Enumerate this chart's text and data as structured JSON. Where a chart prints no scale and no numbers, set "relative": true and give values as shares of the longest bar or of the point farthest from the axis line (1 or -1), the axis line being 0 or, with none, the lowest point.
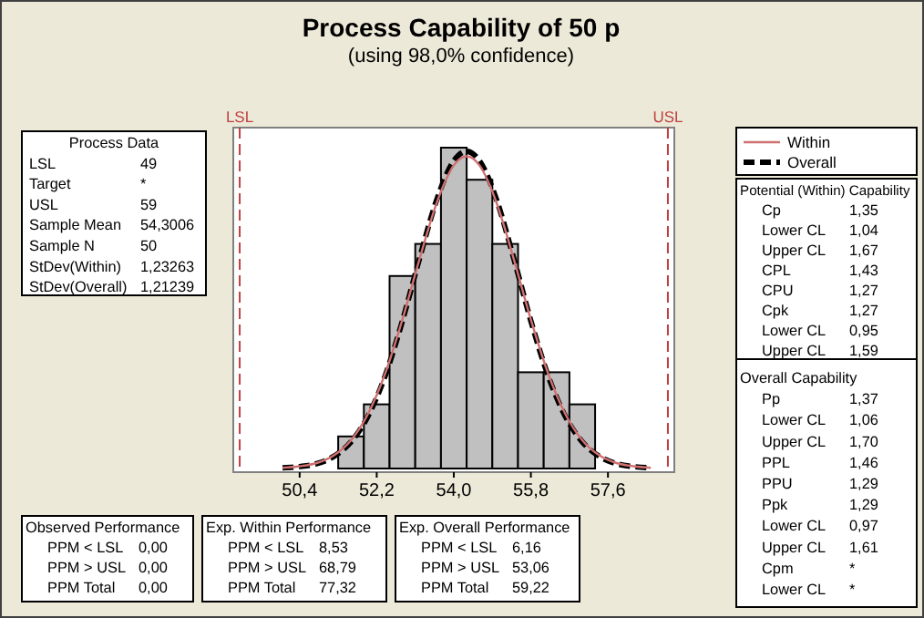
{
  "chart_data": {
    "type": "histogram",
    "title": "Process Capability of 50 p",
    "subtitle": "(using 98,0% confidence)",
    "relative": true,
    "color": "#c0c0c0",
    "bins": [
      51.3,
      51.9,
      52.5,
      53.1,
      53.7,
      54.3,
      54.9,
      55.5,
      56.1,
      56.7,
      57.3
    ],
    "values": [
      0.1,
      0.2,
      0.6,
      0.7,
      1,
      0.9,
      0.7,
      0.3,
      0.3,
      0.2
    ],
    "series": [
      {
        "type": "line",
        "name": "Within",
        "color": "#d07070",
        "line_style": "solid",
        "x": [
          50.0,
          50.4,
          50.8,
          51.2,
          51.6,
          52.0,
          52.4,
          52.8,
          53.2,
          53.6,
          54.0,
          54.3,
          54.6,
          55.0,
          55.4,
          55.8,
          56.2,
          56.6,
          57.0,
          57.4,
          57.8,
          58.2,
          58.6
        ],
        "values": [
          0.002,
          0.007,
          0.017,
          0.041,
          0.088,
          0.171,
          0.297,
          0.464,
          0.653,
          0.828,
          0.945,
          0.973,
          0.945,
          0.828,
          0.653,
          0.464,
          0.297,
          0.171,
          0.088,
          0.041,
          0.017,
          0.007,
          0.002
        ]
      },
      {
        "type": "line",
        "name": "Overall",
        "color": "#000000",
        "line_style": "dashed",
        "x": [
          50.0,
          50.4,
          50.8,
          51.2,
          51.6,
          52.0,
          52.4,
          52.8,
          53.2,
          53.6,
          54.0,
          54.3,
          54.6,
          55.0,
          55.4,
          55.8,
          56.2,
          56.6,
          57.0,
          57.4,
          57.8,
          58.2,
          58.6
        ],
        "values": [
          0.002,
          0.006,
          0.015,
          0.038,
          0.083,
          0.164,
          0.29,
          0.46,
          0.655,
          0.837,
          0.959,
          0.989,
          0.959,
          0.837,
          0.655,
          0.46,
          0.29,
          0.164,
          0.083,
          0.038,
          0.015,
          0.006,
          0.002
        ]
      }
    ],
    "xlim": [
      48.85,
      59.15
    ],
    "xticks": [
      {
        "value": 50.4,
        "label": "50,4"
      },
      {
        "value": 52.2,
        "label": "52,2"
      },
      {
        "value": 54.0,
        "label": "54,0"
      },
      {
        "value": 55.8,
        "label": "55,8"
      },
      {
        "value": 57.6,
        "label": "57,6"
      }
    ],
    "ref_lines": [
      {
        "axis": "x",
        "value": 49,
        "label": "LSL",
        "color": "#c04040",
        "line_style": "dashed"
      },
      {
        "axis": "x",
        "value": 59,
        "label": "USL",
        "color": "#c04040",
        "line_style": "dashed"
      }
    ],
    "legend": "right",
    "annotations": [
      "Process Data",
      "LSL\t49",
      "Target\t*",
      "USL\t59",
      "Sample Mean\t54,3006",
      "Sample N\t50",
      "StDev(Within)\t1,23263",
      "StDev(Overall)\t1,21239",
      "Potential (Within) Capability",
      "Cp\t1,35",
      "Lower CL\t1,04",
      "Upper CL\t1,67",
      "CPL\t1,43",
      "CPU\t1,27",
      "Cpk\t1,27",
      "Lower CL\t0,95",
      "Upper CL\t1,59",
      "Overall Capability",
      "Pp\t1,37",
      "Lower CL\t1,06",
      "Upper CL\t1,70",
      "PPL\t1,46",
      "PPU\t1,29",
      "Ppk\t1,29",
      "Lower CL\t0,97",
      "Upper CL\t1,61",
      "Cpm\t*",
      "Lower CL\t*",
      "Observed Performance",
      "PPM < LSL\t0,00",
      "PPM > USL\t0,00",
      "PPM Total\t0,00",
      "Exp. Within Performance",
      "PPM < LSL\t8,53",
      "PPM > USL\t68,79",
      "PPM Total\t77,32",
      "Exp. Overall Performance",
      "PPM < LSL\t6,16",
      "PPM > USL\t53,06",
      "PPM Total\t59,22"
    ]
  }
}
